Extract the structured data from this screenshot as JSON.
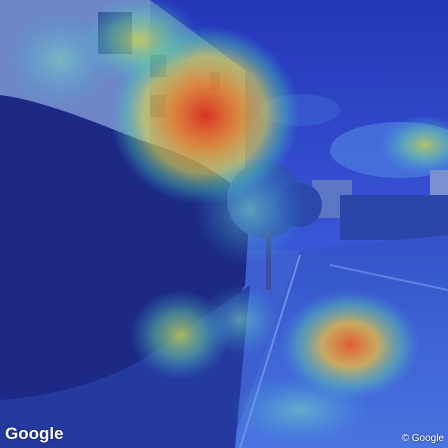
{
  "watermark": {
    "logo_text": "Google",
    "copyright_text": "© Google"
  },
  "colors": {
    "sky": "#2b3fc4",
    "hedge": "#1e2f8f",
    "building": "#6f86c9",
    "road": "#3b5bd6",
    "heat_hot": "#e63b1f",
    "heat_warm": "#f2c23a",
    "heat_mild": "#5fd0a0"
  }
}
